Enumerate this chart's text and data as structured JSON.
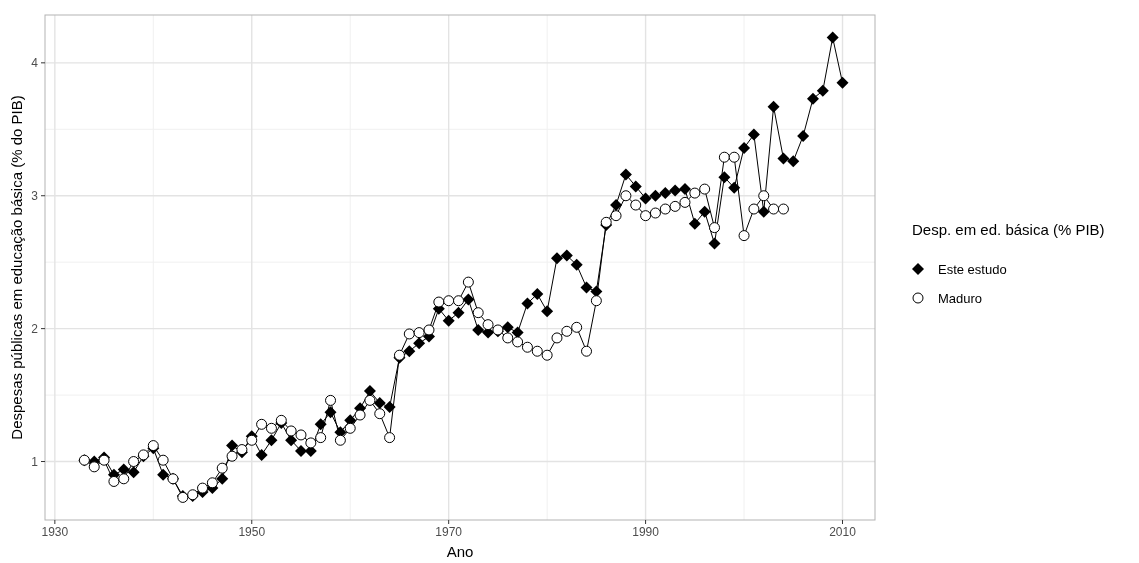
{
  "chart_data": {
    "type": "line",
    "xlabel": "Ano",
    "ylabel": "Despesas públicas em educação básica (% do PIB)",
    "legend_title": "Desp. em ed. básica (% PIB)",
    "legend": "right",
    "grid": true,
    "xlim": [
      1929,
      2013.3
    ],
    "ylim": [
      0.56,
      4.36
    ],
    "xticks": [
      1930,
      1950,
      1970,
      1990,
      2010
    ],
    "yticks": [
      1,
      2,
      3,
      4
    ],
    "series": [
      {
        "name": "Este estudo",
        "color": "#000000",
        "marker": "diamond",
        "x": [
          1933,
          1934,
          1935,
          1936,
          1937,
          1938,
          1939,
          1940,
          1941,
          1942,
          1943,
          1944,
          1945,
          1946,
          1947,
          1948,
          1949,
          1950,
          1951,
          1952,
          1953,
          1954,
          1955,
          1956,
          1957,
          1958,
          1959,
          1960,
          1961,
          1962,
          1963,
          1964,
          1965,
          1966,
          1967,
          1968,
          1969,
          1970,
          1971,
          1972,
          1973,
          1974,
          1975,
          1976,
          1977,
          1978,
          1979,
          1980,
          1981,
          1982,
          1983,
          1984,
          1985,
          1986,
          1987,
          1988,
          1989,
          1990,
          1991,
          1992,
          1993,
          1994,
          1995,
          1996,
          1997,
          1998,
          1999,
          2000,
          2001,
          2002,
          2003,
          2004,
          2005,
          2006,
          2007,
          2008,
          2009,
          2010
        ],
        "values": [
          1.01,
          1.0,
          1.03,
          0.9,
          0.94,
          0.92,
          1.04,
          1.1,
          0.9,
          0.87,
          0.74,
          0.74,
          0.77,
          0.8,
          0.87,
          1.12,
          1.07,
          1.19,
          1.05,
          1.16,
          1.29,
          1.16,
          1.08,
          1.08,
          1.28,
          1.37,
          1.22,
          1.31,
          1.4,
          1.53,
          1.44,
          1.41,
          1.78,
          1.83,
          1.89,
          1.94,
          2.15,
          2.06,
          2.12,
          2.22,
          1.99,
          1.97,
          1.98,
          2.01,
          1.97,
          2.19,
          2.26,
          2.13,
          2.53,
          2.55,
          2.48,
          2.31,
          2.28,
          2.78,
          2.93,
          3.16,
          3.07,
          2.98,
          3.0,
          3.02,
          3.04,
          3.05,
          2.79,
          2.88,
          2.64,
          3.14,
          3.06,
          3.36,
          3.46,
          2.88,
          3.67,
          3.28,
          3.26,
          3.45,
          3.73,
          3.79,
          4.19,
          3.85
        ]
      },
      {
        "name": "Maduro",
        "color": "#000000",
        "marker": "circle",
        "x": [
          1933,
          1934,
          1935,
          1936,
          1937,
          1938,
          1939,
          1940,
          1941,
          1942,
          1943,
          1944,
          1945,
          1946,
          1947,
          1948,
          1949,
          1950,
          1951,
          1952,
          1953,
          1954,
          1955,
          1956,
          1957,
          1958,
          1959,
          1960,
          1961,
          1962,
          1963,
          1964,
          1965,
          1966,
          1967,
          1968,
          1969,
          1970,
          1971,
          1972,
          1973,
          1974,
          1975,
          1976,
          1977,
          1978,
          1979,
          1980,
          1981,
          1982,
          1983,
          1984,
          1985,
          1986,
          1987,
          1988,
          1989,
          1990,
          1991,
          1992,
          1993,
          1994,
          1995,
          1996,
          1997,
          1998,
          1999,
          2000,
          2001,
          2002,
          2003,
          2004
        ],
        "values": [
          1.01,
          0.96,
          1.01,
          0.85,
          0.87,
          1.0,
          1.05,
          1.12,
          1.01,
          0.87,
          0.73,
          0.75,
          0.8,
          0.84,
          0.95,
          1.04,
          1.09,
          1.16,
          1.28,
          1.25,
          1.31,
          1.23,
          1.2,
          1.14,
          1.18,
          1.46,
          1.16,
          1.25,
          1.35,
          1.46,
          1.36,
          1.18,
          1.8,
          1.96,
          1.97,
          1.99,
          2.2,
          2.21,
          2.21,
          2.35,
          2.12,
          2.03,
          1.99,
          1.93,
          1.9,
          1.86,
          1.83,
          1.8,
          1.93,
          1.98,
          2.01,
          1.83,
          2.21,
          2.8,
          2.85,
          3.0,
          2.93,
          2.85,
          2.87,
          2.9,
          2.92,
          2.95,
          3.02,
          3.05,
          2.76,
          3.29,
          3.29,
          2.7,
          2.9,
          3.0,
          2.9,
          2.9
        ]
      }
    ]
  }
}
